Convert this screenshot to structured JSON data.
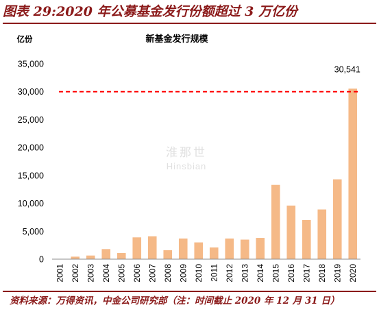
{
  "figure": {
    "title": "图表 29:2020 年公募基金发行份额超过 3 万亿份",
    "source": "资料来源：万得资讯，中金公司研究部（注：时间截止 2020 年 12 月 31 日）",
    "watermark_cn": "淮那世",
    "watermark_en": "Hinsbian"
  },
  "chart_data": {
    "type": "bar",
    "title": "新基金发行规模",
    "ylabel": "亿份",
    "xlabel": "",
    "categories": [
      "2001",
      "2002",
      "2003",
      "2004",
      "2005",
      "2006",
      "2007",
      "2008",
      "2009",
      "2010",
      "2011",
      "2012",
      "2013",
      "2014",
      "2015",
      "2016",
      "2017",
      "2018",
      "2019",
      "2020"
    ],
    "values": [
      50,
      450,
      650,
      1800,
      1100,
      3900,
      4100,
      1600,
      3700,
      3000,
      2100,
      3700,
      3500,
      3800,
      13300,
      9600,
      7000,
      8900,
      14300,
      30541
    ],
    "ylim": [
      0,
      35000
    ],
    "yticks": [
      0,
      5000,
      10000,
      15000,
      20000,
      25000,
      30000,
      35000
    ],
    "ytick_labels": [
      "0",
      "5,000",
      "10,000",
      "15,000",
      "20,000",
      "25,000",
      "30,000",
      "35,000"
    ],
    "data_labels": [
      {
        "category": "2020",
        "text": "30,541"
      }
    ],
    "reference_line": {
      "value": 30000,
      "style": "dashed",
      "color": "#ff0000"
    },
    "bar_color": "#f5b987",
    "grid": false,
    "legend": "none"
  }
}
